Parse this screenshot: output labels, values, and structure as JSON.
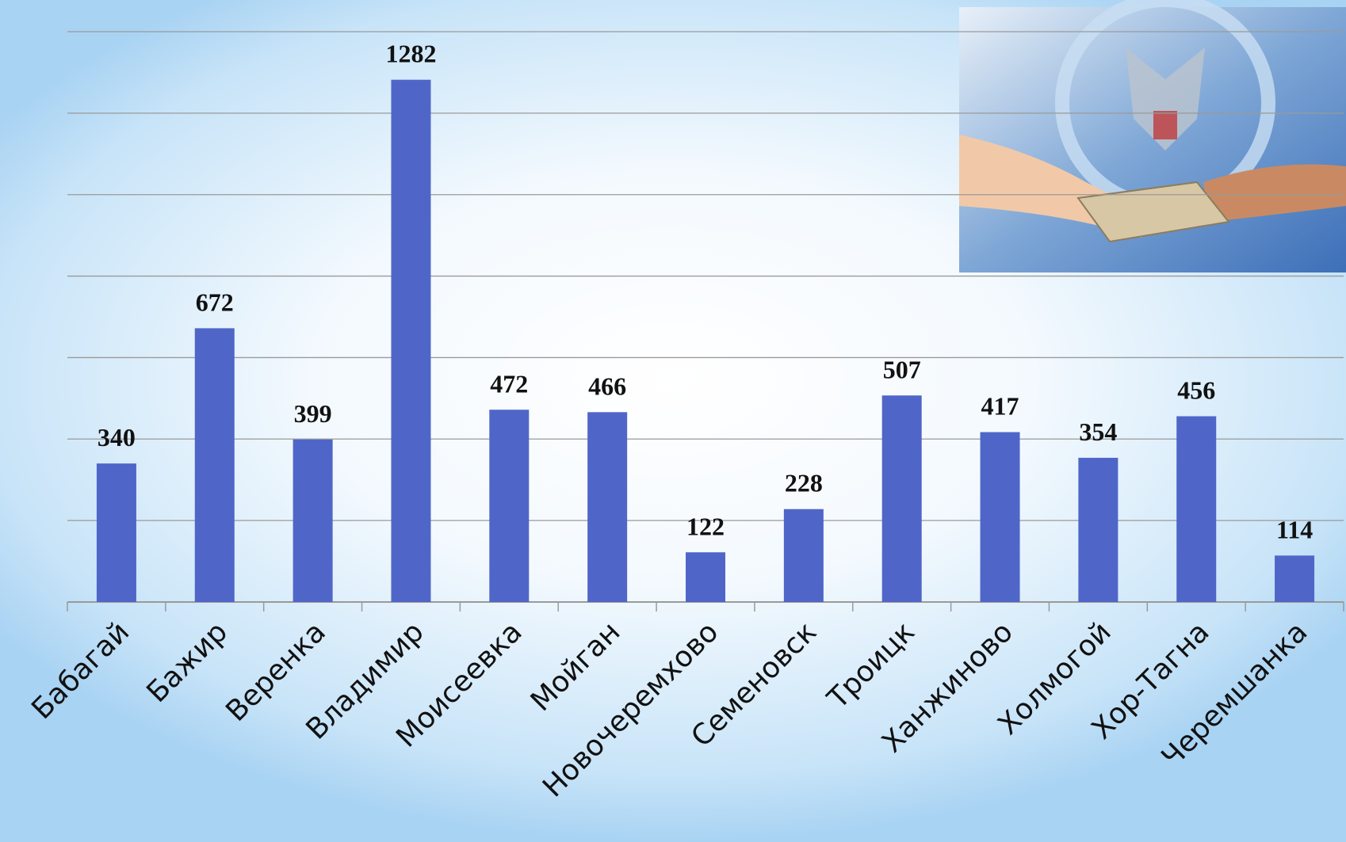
{
  "chart_data": {
    "type": "bar",
    "categories": [
      "Бабагай",
      "Бажир",
      "Веренка",
      "Владимир",
      "Моисеевка",
      "Мойган",
      "Новочеремхово",
      "Семеновск",
      "Троицк",
      "Ханжиново",
      "Холмогой",
      "Хор-Тагна",
      "Черемшанка"
    ],
    "values": [
      340,
      672,
      399,
      1282,
      472,
      466,
      122,
      228,
      507,
      417,
      354,
      456,
      114
    ],
    "color": "#4f66c8",
    "ylim": [
      0,
      1400
    ],
    "yticks": [
      0,
      200,
      400,
      600,
      800,
      1000,
      1200,
      1400
    ],
    "grid": true
  }
}
